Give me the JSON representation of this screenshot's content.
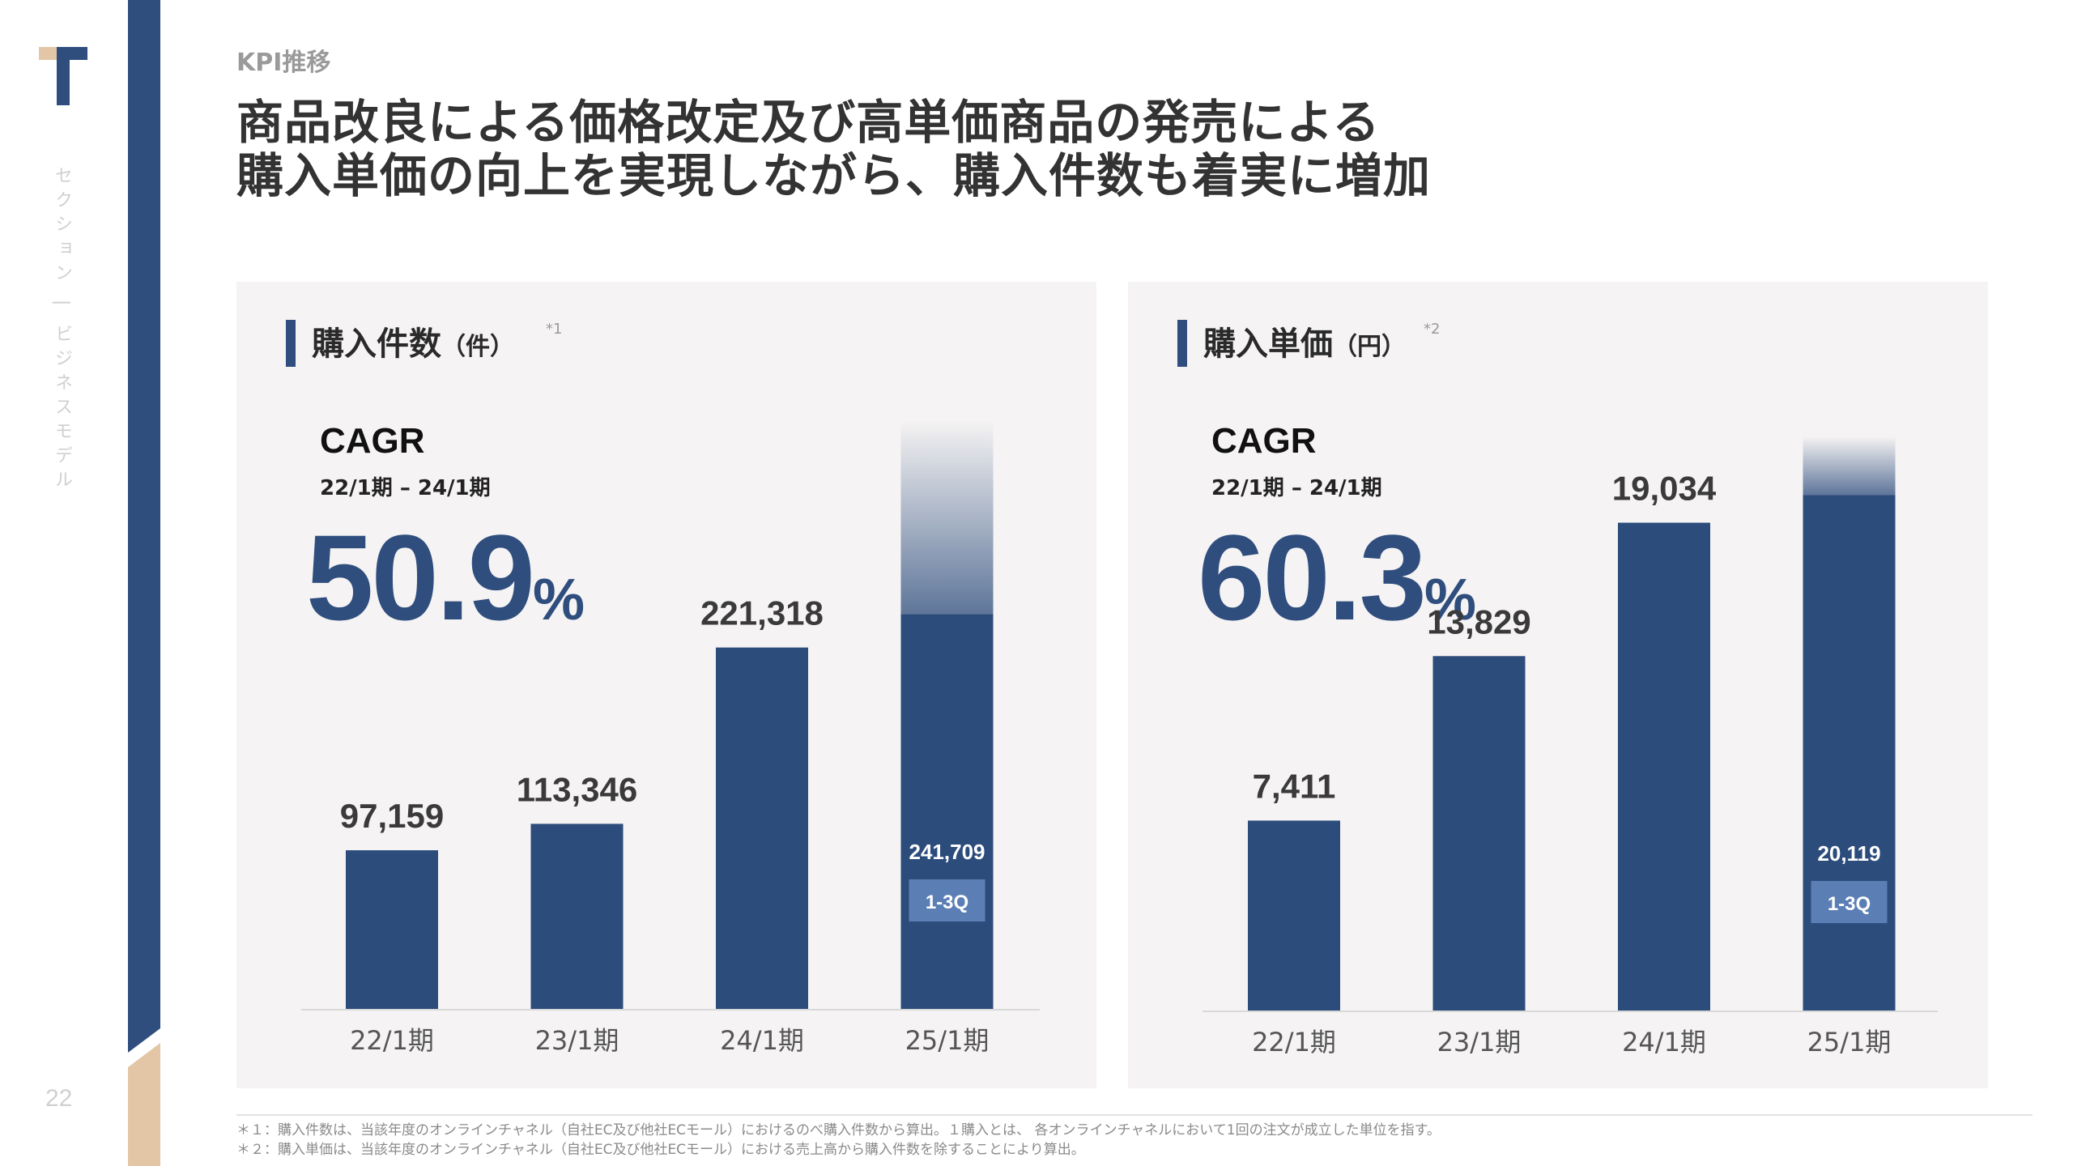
{
  "page": {
    "section_label": "KPI推移",
    "headline_line1": "商品改良による価格改定及び高単価商品の発売による",
    "headline_line2": "購入単価の向上を実現しながら、購入件数も着実に増加",
    "side_label": "セクション | ビジネスモデル",
    "page_number": "22",
    "footnote1": "＊１：購入件数は、当該年度のオンラインチャネル（自社EC及び他社ECモール）におけるのべ購入件数から算出。１購入とは、 各オンラインチャネルにおいて1回の注文が成立した単位を指す。",
    "footnote2": "＊２：購入単価は、当該年度のオンラインチャネル（自社EC及び他社ECモール）における売上高から購入件数を除することにより算出。"
  },
  "colors": {
    "brand_navy": "#2f4e7e",
    "bar": "#2c4c7c",
    "badge": "#5b7fb5",
    "accent_tan": "#e3c6a6",
    "panel_bg": "#f5f3f3"
  },
  "panels": [
    {
      "title": "購入件数",
      "unit": "（件）",
      "note": "*1",
      "cagr_label": "CAGR",
      "cagr_period": "22/1期 – 24/1期",
      "cagr_value": "50.9",
      "cagr_unit": "%"
    },
    {
      "title": "購入単価",
      "unit": "（円）",
      "note": "*2",
      "cagr_label": "CAGR",
      "cagr_period": "22/1期 – 24/1期",
      "cagr_value": "60.3",
      "cagr_unit": "%"
    }
  ],
  "chart_data": [
    {
      "type": "bar",
      "title": "購入件数（件）",
      "categories": [
        "22/1期",
        "23/1期",
        "24/1期",
        "25/1期"
      ],
      "values": [
        97159,
        113346,
        221318,
        241709
      ],
      "labels": [
        "97,159",
        "113,346",
        "221,318",
        "241,709"
      ],
      "partial_period_badge": "1-3Q",
      "partial_index": 3,
      "ylim": [
        0,
        360000
      ],
      "fade_top": 360000
    },
    {
      "type": "bar",
      "title": "購入単価（円）",
      "categories": [
        "22/1期",
        "23/1期",
        "24/1期",
        "25/1期"
      ],
      "values": [
        7411,
        13829,
        19034,
        20119
      ],
      "labels": [
        "7,411",
        "13,829",
        "19,034",
        "20,119"
      ],
      "partial_period_badge": "1-3Q",
      "partial_index": 3,
      "ylim": [
        0,
        23000
      ],
      "fade_top": 22400
    }
  ]
}
